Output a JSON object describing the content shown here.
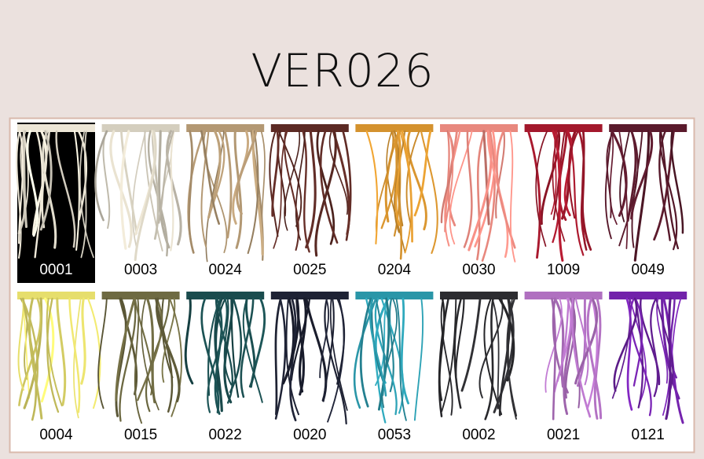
{
  "header": {
    "title": "VER026"
  },
  "swatches": [
    {
      "code": "0001",
      "color": "#ece6d6"
    },
    {
      "code": "0003",
      "color": "#d4cebe"
    },
    {
      "code": "0024",
      "color": "#b39873"
    },
    {
      "code": "0025",
      "color": "#5c2a24"
    },
    {
      "code": "0204",
      "color": "#d4922e"
    },
    {
      "code": "0030",
      "color": "#e8887e"
    },
    {
      "code": "1009",
      "color": "#a3182c"
    },
    {
      "code": "0049",
      "color": "#5a1a2c"
    },
    {
      "code": "0004",
      "color": "#e6de6c"
    },
    {
      "code": "0015",
      "color": "#6e6a42"
    },
    {
      "code": "0022",
      "color": "#1a4c4e"
    },
    {
      "code": "0020",
      "color": "#1e2234"
    },
    {
      "code": "0053",
      "color": "#2a96a8"
    },
    {
      "code": "0002",
      "color": "#2c2c30"
    },
    {
      "code": "0021",
      "color": "#b070c0"
    },
    {
      "code": "0121",
      "color": "#7222aa"
    }
  ]
}
